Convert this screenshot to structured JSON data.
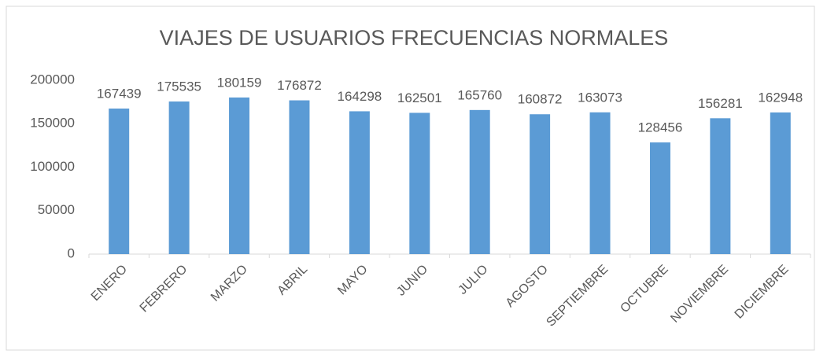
{
  "chart_data": {
    "type": "bar",
    "title": "VIAJES DE USUARIOS FRECUENCIAS NORMALES",
    "categories": [
      "ENERO",
      "FEBRERO",
      "MARZO",
      "ABRIL",
      "MAYO",
      "JUNIO",
      "JULIO",
      "AGOSTO",
      "SEPTIEMBRE",
      "OCTUBRE",
      "NOVIEMBRE",
      "DICIEMBRE"
    ],
    "values": [
      167439,
      175535,
      180159,
      176872,
      164298,
      162501,
      165760,
      160872,
      163073,
      128456,
      156281,
      162948
    ],
    "color": "#5b9bd5",
    "ylim": [
      0,
      200000
    ],
    "yticks": [
      0,
      50000,
      100000,
      150000,
      200000
    ],
    "grid": false
  }
}
